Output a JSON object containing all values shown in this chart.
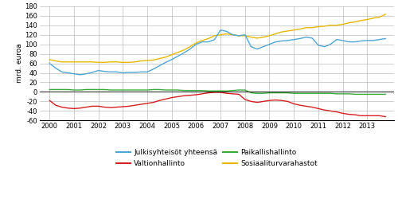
{
  "ylabel": "mrd. euroa",
  "xlim": [
    1999.6,
    2014.1
  ],
  "ylim": [
    -60,
    180
  ],
  "yticks": [
    -60,
    -40,
    -20,
    0,
    20,
    40,
    60,
    80,
    100,
    120,
    140,
    160,
    180
  ],
  "xticks": [
    2000,
    2001,
    2002,
    2003,
    2004,
    2005,
    2006,
    2007,
    2008,
    2009,
    2010,
    2011,
    2012,
    2013
  ],
  "background_color": "#ffffff",
  "grid_color": "#bbbbbb",
  "series": {
    "Julkisyhteisot": {
      "color": "#4da6d4",
      "data_x": [
        2000,
        2000.25,
        2000.5,
        2000.75,
        2001,
        2001.25,
        2001.5,
        2001.75,
        2002,
        2002.25,
        2002.5,
        2002.75,
        2003,
        2003.25,
        2003.5,
        2003.75,
        2004,
        2004.25,
        2004.5,
        2004.75,
        2005,
        2005.25,
        2005.5,
        2005.75,
        2006,
        2006.25,
        2006.5,
        2006.75,
        2007,
        2007.25,
        2007.5,
        2007.75,
        2008,
        2008.25,
        2008.5,
        2008.75,
        2009,
        2009.25,
        2009.5,
        2009.75,
        2010,
        2010.25,
        2010.5,
        2010.75,
        2011,
        2011.25,
        2011.5,
        2011.75,
        2012,
        2012.25,
        2012.5,
        2012.75,
        2013,
        2013.25,
        2013.5,
        2013.75
      ],
      "data_y": [
        60,
        50,
        42,
        40,
        38,
        36,
        38,
        41,
        45,
        43,
        42,
        42,
        40,
        41,
        41,
        42,
        42,
        48,
        55,
        62,
        68,
        75,
        82,
        90,
        100,
        105,
        105,
        110,
        130,
        127,
        120,
        118,
        120,
        95,
        90,
        95,
        100,
        105,
        107,
        108,
        110,
        112,
        115,
        113,
        98,
        95,
        100,
        110,
        108,
        105,
        105,
        107,
        108,
        108,
        110,
        112
      ]
    },
    "Valtionhallinto": {
      "color": "#d42020",
      "data_x": [
        2000,
        2000.25,
        2000.5,
        2000.75,
        2001,
        2001.25,
        2001.5,
        2001.75,
        2002,
        2002.25,
        2002.5,
        2002.75,
        2003,
        2003.25,
        2003.5,
        2003.75,
        2004,
        2004.25,
        2004.5,
        2004.75,
        2005,
        2005.25,
        2005.5,
        2005.75,
        2006,
        2006.25,
        2006.5,
        2006.75,
        2007,
        2007.25,
        2007.5,
        2007.75,
        2008,
        2008.25,
        2008.5,
        2008.75,
        2009,
        2009.25,
        2009.5,
        2009.75,
        2010,
        2010.25,
        2010.5,
        2010.75,
        2011,
        2011.25,
        2011.5,
        2011.75,
        2012,
        2012.25,
        2012.5,
        2012.75,
        2013,
        2013.25,
        2013.5,
        2013.75
      ],
      "data_y": [
        -18,
        -28,
        -32,
        -34,
        -35,
        -34,
        -32,
        -30,
        -30,
        -32,
        -33,
        -32,
        -31,
        -30,
        -28,
        -26,
        -24,
        -22,
        -18,
        -15,
        -12,
        -10,
        -8,
        -7,
        -6,
        -4,
        -2,
        -1,
        -1,
        -3,
        -4,
        -5,
        -16,
        -20,
        -22,
        -20,
        -18,
        -17,
        -18,
        -20,
        -25,
        -28,
        -30,
        -32,
        -35,
        -38,
        -40,
        -42,
        -45,
        -47,
        -48,
        -50,
        -50,
        -50,
        -50,
        -52
      ]
    },
    "Paikallishallinto": {
      "color": "#3aaa3a",
      "data_x": [
        2000,
        2000.25,
        2000.5,
        2000.75,
        2001,
        2001.25,
        2001.5,
        2001.75,
        2002,
        2002.25,
        2002.5,
        2002.75,
        2003,
        2003.25,
        2003.5,
        2003.75,
        2004,
        2004.25,
        2004.5,
        2004.75,
        2005,
        2005.25,
        2005.5,
        2005.75,
        2006,
        2006.25,
        2006.5,
        2006.75,
        2007,
        2007.25,
        2007.5,
        2007.75,
        2008,
        2008.25,
        2008.5,
        2008.75,
        2009,
        2009.25,
        2009.5,
        2009.75,
        2010,
        2010.25,
        2010.5,
        2010.75,
        2011,
        2011.25,
        2011.5,
        2011.75,
        2012,
        2012.25,
        2012.5,
        2012.75,
        2013,
        2013.25,
        2013.5,
        2013.75
      ],
      "data_y": [
        5,
        5,
        5,
        5,
        4,
        4,
        5,
        5,
        5,
        5,
        4,
        4,
        4,
        4,
        4,
        4,
        4,
        5,
        5,
        4,
        4,
        4,
        3,
        3,
        3,
        3,
        2,
        2,
        2,
        2,
        3,
        4,
        4,
        -2,
        -3,
        -3,
        -2,
        -2,
        -2,
        -2,
        -3,
        -3,
        -3,
        -3,
        -3,
        -3,
        -3,
        -4,
        -4,
        -4,
        -5,
        -5,
        -5,
        -5,
        -5,
        -5
      ]
    },
    "Sosiaaliturvarahastot": {
      "color": "#e8b800",
      "data_x": [
        2000,
        2000.25,
        2000.5,
        2000.75,
        2001,
        2001.25,
        2001.5,
        2001.75,
        2002,
        2002.25,
        2002.5,
        2002.75,
        2003,
        2003.25,
        2003.5,
        2003.75,
        2004,
        2004.25,
        2004.5,
        2004.75,
        2005,
        2005.25,
        2005.5,
        2005.75,
        2006,
        2006.25,
        2006.5,
        2006.75,
        2007,
        2007.25,
        2007.5,
        2007.75,
        2008,
        2008.25,
        2008.5,
        2008.75,
        2009,
        2009.25,
        2009.5,
        2009.75,
        2010,
        2010.25,
        2010.5,
        2010.75,
        2011,
        2011.25,
        2011.5,
        2011.75,
        2012,
        2012.25,
        2012.5,
        2012.75,
        2013,
        2013.25,
        2013.5,
        2013.75
      ],
      "data_y": [
        68,
        65,
        63,
        63,
        63,
        63,
        63,
        63,
        62,
        62,
        63,
        63,
        62,
        62,
        63,
        65,
        66,
        67,
        70,
        73,
        78,
        83,
        88,
        95,
        103,
        108,
        112,
        118,
        120,
        122,
        120,
        118,
        118,
        115,
        113,
        115,
        118,
        122,
        126,
        128,
        130,
        132,
        135,
        135,
        137,
        138,
        140,
        140,
        142,
        145,
        147,
        150,
        152,
        155,
        157,
        163
      ]
    }
  },
  "legend": [
    {
      "label": "Julkisyhteisöt yhteensä",
      "color": "#4da6d4"
    },
    {
      "label": "Valtionhallinto",
      "color": "#d42020"
    },
    {
      "label": "Paikallishallinto",
      "color": "#3aaa3a"
    },
    {
      "label": "Sosiaaliturvarahastot",
      "color": "#e8b800"
    }
  ]
}
